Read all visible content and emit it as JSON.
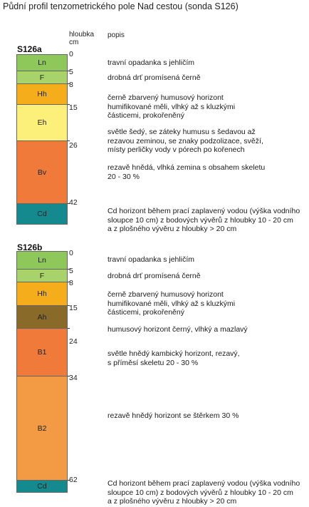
{
  "title": "Půdní profil tenzometrického pole Nad cestou (sonda S126)",
  "colors": {
    "Ln": "#8fc85a",
    "F": "#a8d36b",
    "Hh": "#f5ad1c",
    "Eh": "#fcef7a",
    "Bv": "#f07a3a",
    "Cd": "#158a8e",
    "Ah": "#8a6a28",
    "B1": "#f07a3a",
    "B2": "#f39a45"
  },
  "profiles": [
    {
      "name": "S126a",
      "depth_header": "hloubka\ncm",
      "popis_header": "popis",
      "depths": [
        "0",
        "5",
        "8",
        "15",
        "26",
        "42"
      ],
      "layers": [
        {
          "code": "Ln",
          "top": 0,
          "bottom": 5,
          "color_key": "Ln",
          "desc": "travní opadanka s jehličím"
        },
        {
          "code": "F",
          "top": 5,
          "bottom": 8,
          "color_key": "F",
          "desc": "drobná drť promísená černě"
        },
        {
          "code": "Hh",
          "top": 8,
          "bottom": 15,
          "color_key": "Hh",
          "desc": "černě zbarvený humusový horizont\nhumifikované měli, vlhký až s kluzkými\nčásticemi, prokořeněný"
        },
        {
          "code": "Eh",
          "top": 15,
          "bottom": 26,
          "color_key": "Eh",
          "desc": "světle šedý, se záteky humusu s šedavou až\nrezavou zeminou, se znaky podzolizace, svěží,\nmísty perličky vody v pórech po kořenech"
        },
        {
          "code": "Bv",
          "top": 26,
          "bottom": 42,
          "color_key": "Bv",
          "desc": "rezavě hnědá, vlhká zemina s obsahem skeletu\n20 - 30 %"
        },
        {
          "code": "Cd",
          "top": 42,
          "bottom": 46,
          "color_key": "Cd",
          "desc": "Cd horizont během prací zaplavený vodou (výška vodního\nsloupce 10 cm) z bodových vývěrů z hloubky 10 - 20 cm\na z plošného vývěru z hloubky > 20 cm"
        }
      ]
    },
    {
      "name": "S126b",
      "depths": [
        "0",
        "5",
        "8",
        "15",
        "24",
        "34",
        "62"
      ],
      "layers": [
        {
          "code": "Ln",
          "top": 0,
          "bottom": 5,
          "color_key": "Ln",
          "desc": "travní opadanka s jehličím"
        },
        {
          "code": "F",
          "top": 5,
          "bottom": 8,
          "color_key": "F",
          "desc": "drobná drť promísená černě"
        },
        {
          "code": "Hh",
          "top": 8,
          "bottom": 15,
          "color_key": "Hh",
          "desc": "černě zbarvený humusový horizont\nhumifikované měli, vlhký až s kluzkými\nčásticemi, prokořeněný"
        },
        {
          "code": "Ah",
          "top": 15,
          "bottom": 24,
          "color_key": "Ah",
          "desc": "humusový horizont černý, vlhký a mazlavý"
        },
        {
          "code": "B1",
          "top": 24,
          "bottom": 34,
          "color_key": "B1",
          "desc": "světle hnědý kambický horizont, rezavý,\ns příměsí skeletu 20 - 30 %"
        },
        {
          "code": "B2",
          "top": 34,
          "bottom": 62,
          "color_key": "B2",
          "desc": "rezavě hnědý horizont se štěrkem 30 %"
        },
        {
          "code": "Cd",
          "top": 62,
          "bottom": 64,
          "color_key": "Cd",
          "desc": "Cd horizont během prací zaplavený vodou (výška vodního\nsloupce 10 cm) z bodových vývěrů z hloubky 10 - 20 cm\na z plošného vývěru z hloubky > 20 cm"
        }
      ]
    }
  ]
}
